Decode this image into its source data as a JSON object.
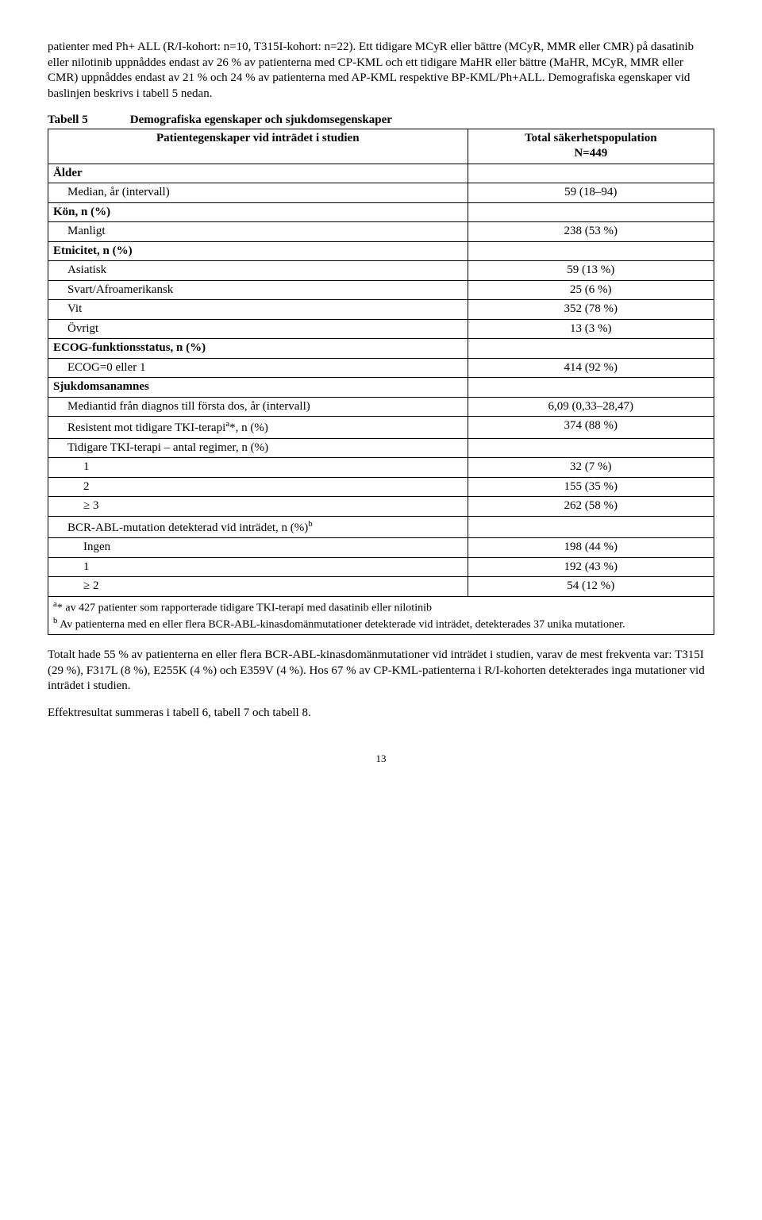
{
  "para1": "patienter med Ph+ ALL (R/I-kohort: n=10, T315I-kohort: n=22). Ett tidigare MCyR eller bättre (MCyR, MMR eller CMR) på dasatinib eller nilotinib uppnåddes endast av 26 % av patienterna med CP-KML och ett tidigare MaHR eller bättre (MaHR, MCyR, MMR eller CMR) uppnåddes endast av 21 % och 24 % av patienterna med AP-KML respektive BP-KML/Ph+ALL. Demografiska egenskaper vid baslinjen beskrivs i tabell 5 nedan.",
  "table5": {
    "label": "Tabell 5",
    "title": "Demografiska egenskaper och sjukdomsegenskaper",
    "header_left": "Patientegenskaper vid inträdet i studien",
    "header_right_l1": "Total säkerhetspopulation",
    "header_right_l2": "N=449",
    "rows": [
      {
        "label": "Ålder",
        "value": "",
        "bold": true,
        "indent": 0
      },
      {
        "label": "Median, år (intervall)",
        "value": "59 (18–94)",
        "bold": false,
        "indent": 1
      },
      {
        "label": "Kön, n (%)",
        "value": "",
        "bold": true,
        "indent": 0
      },
      {
        "label": "Manligt",
        "value": "238 (53 %)",
        "bold": false,
        "indent": 1
      },
      {
        "label": "Etnicitet, n (%)",
        "value": "",
        "bold": true,
        "indent": 0
      },
      {
        "label": "Asiatisk",
        "value": "59 (13 %)",
        "bold": false,
        "indent": 1
      },
      {
        "label": "Svart/Afroamerikansk",
        "value": "25 (6 %)",
        "bold": false,
        "indent": 1
      },
      {
        "label": "Vit",
        "value": "352 (78 %)",
        "bold": false,
        "indent": 1
      },
      {
        "label": "Övrigt",
        "value": "13 (3 %)",
        "bold": false,
        "indent": 1
      },
      {
        "label": "ECOG-funktionsstatus, n (%)",
        "value": "",
        "bold": true,
        "indent": 0
      },
      {
        "label": "ECOG=0 eller 1",
        "value": "414 (92 %)",
        "bold": false,
        "indent": 1
      },
      {
        "label": "Sjukdomsanamnes",
        "value": "",
        "bold": true,
        "indent": 0
      },
      {
        "label": "Mediantid från diagnos till första dos, år (intervall)",
        "value": "6,09 (0,33–28,47)",
        "bold": false,
        "indent": 1
      },
      {
        "label": "Resistent mot tidigare TKI-terapi",
        "sup": "a",
        "after_sup": "*, n (%)",
        "value": "374 (88 %)",
        "bold": false,
        "indent": 1
      },
      {
        "label": "Tidigare TKI-terapi – antal regimer, n (%)",
        "value": "",
        "bold": false,
        "indent": 1
      },
      {
        "label": "1",
        "value": "32 (7 %)",
        "bold": false,
        "indent": 2
      },
      {
        "label": "2",
        "value": "155 (35 %)",
        "bold": false,
        "indent": 2
      },
      {
        "label": "≥ 3",
        "value": "262 (58 %)",
        "bold": false,
        "indent": 2
      },
      {
        "label": "BCR-ABL-mutation detekterad vid inträdet, n (%)",
        "sup": "b",
        "after_sup": "",
        "value": "",
        "bold": false,
        "indent": 1
      },
      {
        "label": "Ingen",
        "value": "198 (44 %)",
        "bold": false,
        "indent": 2
      },
      {
        "label": "1",
        "value": "192 (43 %)",
        "bold": false,
        "indent": 2
      },
      {
        "label": "≥ 2",
        "value": "54 (12 %)",
        "bold": false,
        "indent": 2
      }
    ],
    "footnote_a_sup": "a",
    "footnote_a": "* av 427 patienter som rapporterade tidigare TKI-terapi med dasatinib eller nilotinib",
    "footnote_b_sup": "b",
    "footnote_b": " Av patienterna med en eller flera BCR-ABL-kinasdomänmutationer detekterade vid inträdet, detekterades 37 unika mutationer."
  },
  "para2": "Totalt hade 55 % av patienterna en eller flera BCR-ABL-kinasdomänmutationer vid inträdet i studien, varav de mest frekventa var: T315I (29 %), F317L (8 %), E255K (4 %) och E359V (4 %). Hos 67 % av CP-KML-patienterna i R/I-kohorten detekterades inga mutationer vid inträdet i studien.",
  "para3": "Effektresultat summeras i tabell 6, tabell 7 och tabell 8.",
  "pagenum": "13"
}
